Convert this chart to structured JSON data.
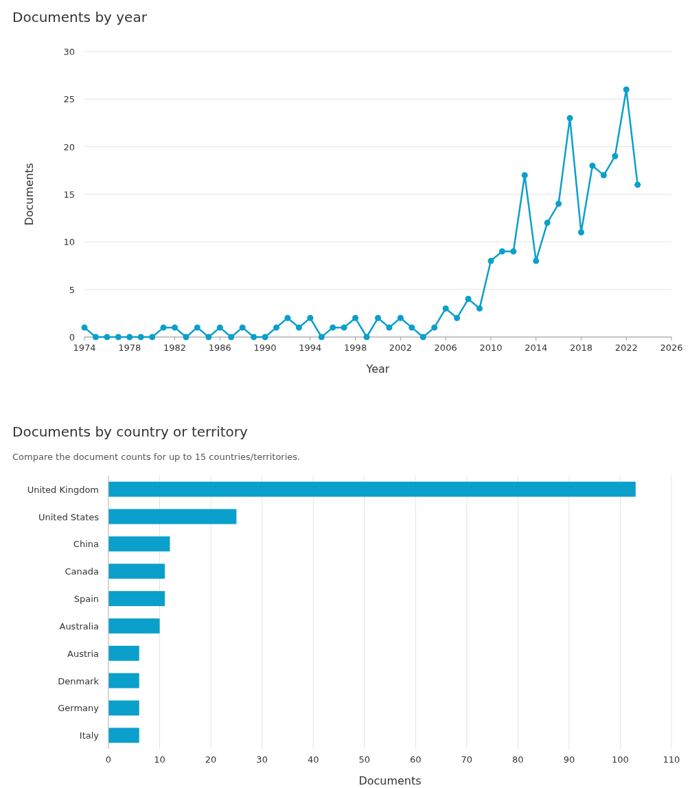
{
  "chart_data": [
    {
      "type": "line",
      "title": "Documents by year",
      "xlabel": "Year",
      "ylabel": "Documents",
      "x": [
        1974,
        1975,
        1976,
        1977,
        1978,
        1979,
        1980,
        1981,
        1982,
        1983,
        1984,
        1985,
        1986,
        1987,
        1988,
        1989,
        1990,
        1991,
        1992,
        1993,
        1994,
        1995,
        1996,
        1997,
        1998,
        1999,
        2000,
        2001,
        2002,
        2003,
        2004,
        2005,
        2006,
        2007,
        2008,
        2009,
        2010,
        2011,
        2012,
        2013,
        2014,
        2015,
        2016,
        2017,
        2018,
        2019,
        2020,
        2021,
        2022,
        2023
      ],
      "values": [
        1,
        0,
        0,
        0,
        0,
        0,
        0,
        1,
        1,
        0,
        1,
        0,
        1,
        0,
        1,
        0,
        0,
        1,
        2,
        1,
        2,
        0,
        1,
        1,
        2,
        0,
        2,
        1,
        2,
        1,
        0,
        1,
        3,
        2,
        4,
        3,
        8,
        9,
        9,
        17,
        8,
        12,
        14,
        23,
        11,
        18,
        17,
        19,
        26,
        16
      ],
      "color": "#0b9fcb",
      "marker": "circle",
      "line_style": "solid",
      "grid": "y",
      "xlim": [
        1974,
        2026
      ],
      "xticks": [
        1974,
        1978,
        1982,
        1986,
        1990,
        1994,
        1998,
        2002,
        2006,
        2010,
        2014,
        2018,
        2022,
        2026
      ],
      "ylim": [
        0,
        30
      ],
      "yticks": [
        0,
        5,
        10,
        15,
        20,
        25,
        30
      ]
    },
    {
      "type": "bar",
      "orientation": "horizontal",
      "title": "Documents by country or territory",
      "subtitle": "Compare the document counts for up to 15 countries/territories.",
      "xlabel": "Documents",
      "categories": [
        "United Kingdom",
        "United States",
        "China",
        "Canada",
        "Spain",
        "Australia",
        "Austria",
        "Denmark",
        "Germany",
        "Italy"
      ],
      "values": [
        103,
        25,
        12,
        11,
        11,
        10,
        6,
        6,
        6,
        6
      ],
      "color": "#0b9fcb",
      "grid": "x",
      "xlim": [
        0,
        110
      ],
      "xticks": [
        0,
        10,
        20,
        30,
        40,
        50,
        60,
        70,
        80,
        90,
        100,
        110
      ]
    }
  ]
}
